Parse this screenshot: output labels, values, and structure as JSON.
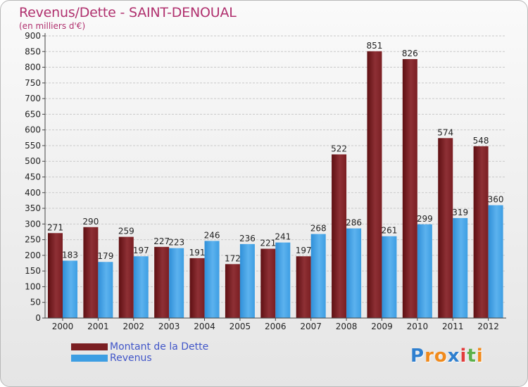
{
  "chart_data": {
    "type": "bar",
    "title": "Revenus/Dette - SAINT-DENOUAL",
    "subtitle": "(en milliers d'€)",
    "xlabel": "",
    "ylabel": "",
    "categories": [
      "2000",
      "2001",
      "2002",
      "2003",
      "2004",
      "2005",
      "2006",
      "2007",
      "2008",
      "2009",
      "2010",
      "2011",
      "2012"
    ],
    "series": [
      {
        "name": "Montant de la Dette",
        "color": "#7a1e22",
        "values": [
          271,
          290,
          259,
          227,
          191,
          172,
          221,
          197,
          522,
          851,
          826,
          574,
          548
        ]
      },
      {
        "name": "Revenus",
        "color": "#3d9ee3",
        "values": [
          183,
          179,
          197,
          223,
          246,
          236,
          241,
          268,
          286,
          261,
          299,
          319,
          360
        ]
      }
    ],
    "ylim": [
      0,
      900
    ],
    "y_ticks": [
      0,
      50,
      100,
      150,
      200,
      250,
      300,
      350,
      400,
      450,
      500,
      550,
      600,
      650,
      700,
      750,
      800,
      850,
      900
    ],
    "grid": true,
    "legend_position": "bottom-left"
  },
  "logo": {
    "letters": [
      "P",
      "r",
      "o",
      "x",
      "i",
      "t",
      "i"
    ],
    "colors": [
      "#2e7fcf",
      "#f08a1c",
      "#f08a1c",
      "#2e7fcf",
      "#e23c3c",
      "#5bb04a",
      "#f08a1c"
    ]
  }
}
